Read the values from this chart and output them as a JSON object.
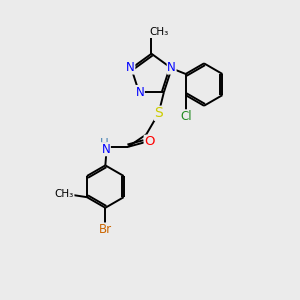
{
  "bg_color": "#ebebeb",
  "bond_color": "#000000",
  "atom_colors": {
    "N": "#0000ff",
    "S": "#cccc00",
    "O": "#ff0000",
    "Br": "#cc6600",
    "Cl": "#228b22",
    "C": "#000000",
    "H": "#4682b4"
  },
  "font_size": 8.5,
  "lw": 1.4
}
